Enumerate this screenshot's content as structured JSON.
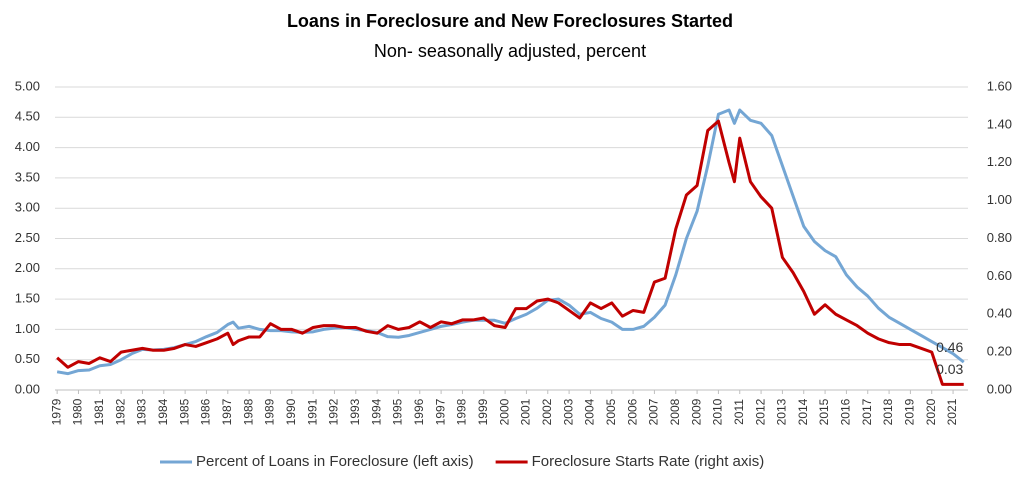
{
  "chart_data": {
    "type": "line",
    "title": "Loans in Foreclosure and New Foreclosures Started",
    "subtitle": "Non- seasonally adjusted, percent",
    "x": [
      1979,
      1979.5,
      1980,
      1980.5,
      1981,
      1981.5,
      1982,
      1982.5,
      1983,
      1983.5,
      1984,
      1984.5,
      1985,
      1985.5,
      1986,
      1986.5,
      1987,
      1987.25,
      1987.5,
      1988,
      1988.5,
      1989,
      1989.5,
      1990,
      1990.5,
      1991,
      1991.5,
      1992,
      1992.5,
      1993,
      1993.5,
      1994,
      1994.5,
      1995,
      1995.5,
      1996,
      1996.5,
      1997,
      1997.5,
      1998,
      1998.5,
      1999,
      1999.5,
      2000,
      2000.5,
      2001,
      2001.5,
      2002,
      2002.5,
      2003,
      2003.5,
      2004,
      2004.5,
      2005,
      2005.5,
      2006,
      2006.5,
      2007,
      2007.5,
      2008,
      2008.5,
      2009,
      2009.5,
      2010,
      2010.5,
      2010.75,
      2011,
      2011.5,
      2012,
      2012.5,
      2013,
      2013.5,
      2014,
      2014.5,
      2015,
      2015.5,
      2016,
      2016.5,
      2017,
      2017.5,
      2018,
      2018.5,
      2019,
      2019.5,
      2020,
      2020.5,
      2021,
      2021.5
    ],
    "series": [
      {
        "name": "Percent of Loans in Foreclosure (left axis)",
        "color": "#74a6d4",
        "axis": "y",
        "label_last": true,
        "values": [
          0.3,
          0.27,
          0.32,
          0.33,
          0.4,
          0.42,
          0.5,
          0.6,
          0.67,
          0.66,
          0.67,
          0.7,
          0.75,
          0.8,
          0.88,
          0.95,
          1.08,
          1.12,
          1.02,
          1.05,
          1.0,
          0.98,
          0.98,
          0.96,
          0.95,
          0.96,
          1.0,
          1.02,
          1.03,
          1.0,
          0.98,
          0.95,
          0.88,
          0.87,
          0.9,
          0.95,
          1.0,
          1.05,
          1.08,
          1.12,
          1.15,
          1.15,
          1.15,
          1.1,
          1.18,
          1.25,
          1.35,
          1.48,
          1.5,
          1.4,
          1.25,
          1.28,
          1.18,
          1.12,
          1.0,
          1.0,
          1.05,
          1.2,
          1.4,
          1.9,
          2.5,
          2.95,
          3.7,
          4.55,
          4.62,
          4.4,
          4.62,
          4.45,
          4.4,
          4.2,
          3.7,
          3.2,
          2.7,
          2.45,
          2.3,
          2.2,
          1.9,
          1.7,
          1.55,
          1.35,
          1.2,
          1.1,
          1.0,
          0.9,
          0.8,
          0.7,
          0.6,
          0.46
        ]
      },
      {
        "name": "Foreclosure Starts Rate (right axis)",
        "color": "#c00000",
        "axis": "y2",
        "label_last": true,
        "values": [
          0.17,
          0.12,
          0.15,
          0.14,
          0.17,
          0.15,
          0.2,
          0.21,
          0.22,
          0.21,
          0.21,
          0.22,
          0.24,
          0.23,
          0.25,
          0.27,
          0.3,
          0.24,
          0.26,
          0.28,
          0.28,
          0.35,
          0.32,
          0.32,
          0.3,
          0.33,
          0.34,
          0.34,
          0.33,
          0.33,
          0.31,
          0.3,
          0.34,
          0.32,
          0.33,
          0.36,
          0.33,
          0.36,
          0.35,
          0.37,
          0.37,
          0.38,
          0.34,
          0.33,
          0.43,
          0.43,
          0.47,
          0.48,
          0.46,
          0.42,
          0.38,
          0.46,
          0.43,
          0.46,
          0.39,
          0.42,
          0.41,
          0.57,
          0.59,
          0.85,
          1.03,
          1.08,
          1.37,
          1.42,
          1.2,
          1.1,
          1.33,
          1.1,
          1.02,
          0.96,
          0.7,
          0.62,
          0.52,
          0.4,
          0.45,
          0.4,
          0.37,
          0.34,
          0.3,
          0.27,
          0.25,
          0.24,
          0.24,
          0.22,
          0.2,
          0.03,
          0.03,
          0.03
        ]
      }
    ],
    "xlim": [
      1978.9,
      2021.7
    ],
    "xticks": [
      1979,
      1980,
      1981,
      1982,
      1983,
      1984,
      1985,
      1986,
      1987,
      1988,
      1989,
      1990,
      1991,
      1992,
      1993,
      1994,
      1995,
      1996,
      1997,
      1998,
      1999,
      2000,
      2001,
      2002,
      2003,
      2004,
      2005,
      2006,
      2007,
      2008,
      2009,
      2010,
      2011,
      2012,
      2013,
      2014,
      2015,
      2016,
      2017,
      2018,
      2019,
      2020,
      2021
    ],
    "ylim": [
      0,
      5
    ],
    "yticks": [
      {
        "value": 0,
        "label": "0.00"
      },
      {
        "value": 0.5,
        "label": "0.50"
      },
      {
        "value": 1,
        "label": "1.00"
      },
      {
        "value": 1.5,
        "label": "1.50"
      },
      {
        "value": 2,
        "label": "2.00"
      },
      {
        "value": 2.5,
        "label": "2.50"
      },
      {
        "value": 3,
        "label": "3.00"
      },
      {
        "value": 3.5,
        "label": "3.50"
      },
      {
        "value": 4,
        "label": "4.00"
      },
      {
        "value": 4.5,
        "label": "4.50"
      },
      {
        "value": 5,
        "label": "5.00"
      }
    ],
    "y2lim": [
      0,
      1.6
    ],
    "y2ticks": [
      {
        "value": 0,
        "label": "0.00"
      },
      {
        "value": 0.2,
        "label": "0.20"
      },
      {
        "value": 0.4,
        "label": "0.40"
      },
      {
        "value": 0.6,
        "label": "0.60"
      },
      {
        "value": 0.8,
        "label": "0.80"
      },
      {
        "value": 1,
        "label": "1.00"
      },
      {
        "value": 1.2,
        "label": "1.20"
      },
      {
        "value": 1.4,
        "label": "1.40"
      },
      {
        "value": 1.6,
        "label": "1.60"
      }
    ],
    "grid": true,
    "legend": "bottom"
  }
}
